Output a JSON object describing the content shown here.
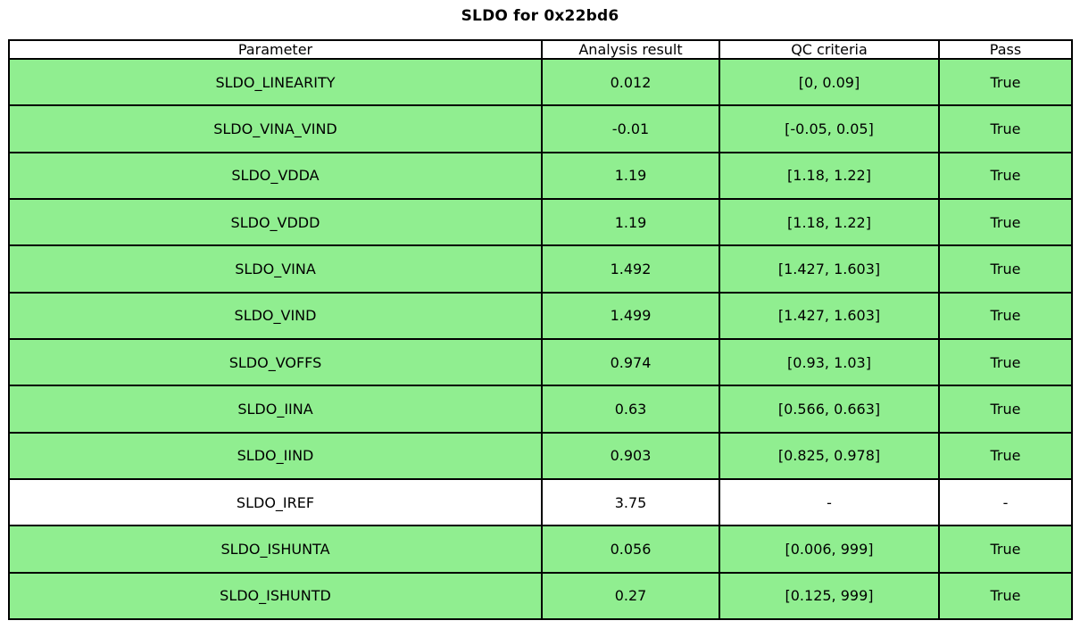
{
  "title": "SLDO for 0x22bd6",
  "chart_data": {
    "type": "table",
    "title": "SLDO for 0x22bd6",
    "columns": [
      "Parameter",
      "Analysis result",
      "QC criteria",
      "Pass"
    ],
    "rows": [
      {
        "parameter": "SLDO_LINEARITY",
        "result": "0.012",
        "criteria": "[0, 0.09]",
        "pass": "True",
        "highlight": true
      },
      {
        "parameter": "SLDO_VINA_VIND",
        "result": "-0.01",
        "criteria": "[-0.05, 0.05]",
        "pass": "True",
        "highlight": true
      },
      {
        "parameter": "SLDO_VDDA",
        "result": "1.19",
        "criteria": "[1.18, 1.22]",
        "pass": "True",
        "highlight": true
      },
      {
        "parameter": "SLDO_VDDD",
        "result": "1.19",
        "criteria": "[1.18, 1.22]",
        "pass": "True",
        "highlight": true
      },
      {
        "parameter": "SLDO_VINA",
        "result": "1.492",
        "criteria": "[1.427, 1.603]",
        "pass": "True",
        "highlight": true
      },
      {
        "parameter": "SLDO_VIND",
        "result": "1.499",
        "criteria": "[1.427, 1.603]",
        "pass": "True",
        "highlight": true
      },
      {
        "parameter": "SLDO_VOFFS",
        "result": "0.974",
        "criteria": "[0.93, 1.03]",
        "pass": "True",
        "highlight": true
      },
      {
        "parameter": "SLDO_IINA",
        "result": "0.63",
        "criteria": "[0.566, 0.663]",
        "pass": "True",
        "highlight": true
      },
      {
        "parameter": "SLDO_IIND",
        "result": "0.903",
        "criteria": "[0.825, 0.978]",
        "pass": "True",
        "highlight": true
      },
      {
        "parameter": "SLDO_IREF",
        "result": "3.75",
        "criteria": "-",
        "pass": "-",
        "highlight": false
      },
      {
        "parameter": "SLDO_ISHUNTA",
        "result": "0.056",
        "criteria": "[0.006, 999]",
        "pass": "True",
        "highlight": true
      },
      {
        "parameter": "SLDO_ISHUNTD",
        "result": "0.27",
        "criteria": "[0.125, 999]",
        "pass": "True",
        "highlight": true
      }
    ],
    "layout": {
      "grid": true,
      "legend": "none"
    }
  },
  "colors": {
    "pass_row_green": "#90EE90",
    "border": "#000000",
    "background": "#FFFFFF",
    "text": "#000000"
  }
}
